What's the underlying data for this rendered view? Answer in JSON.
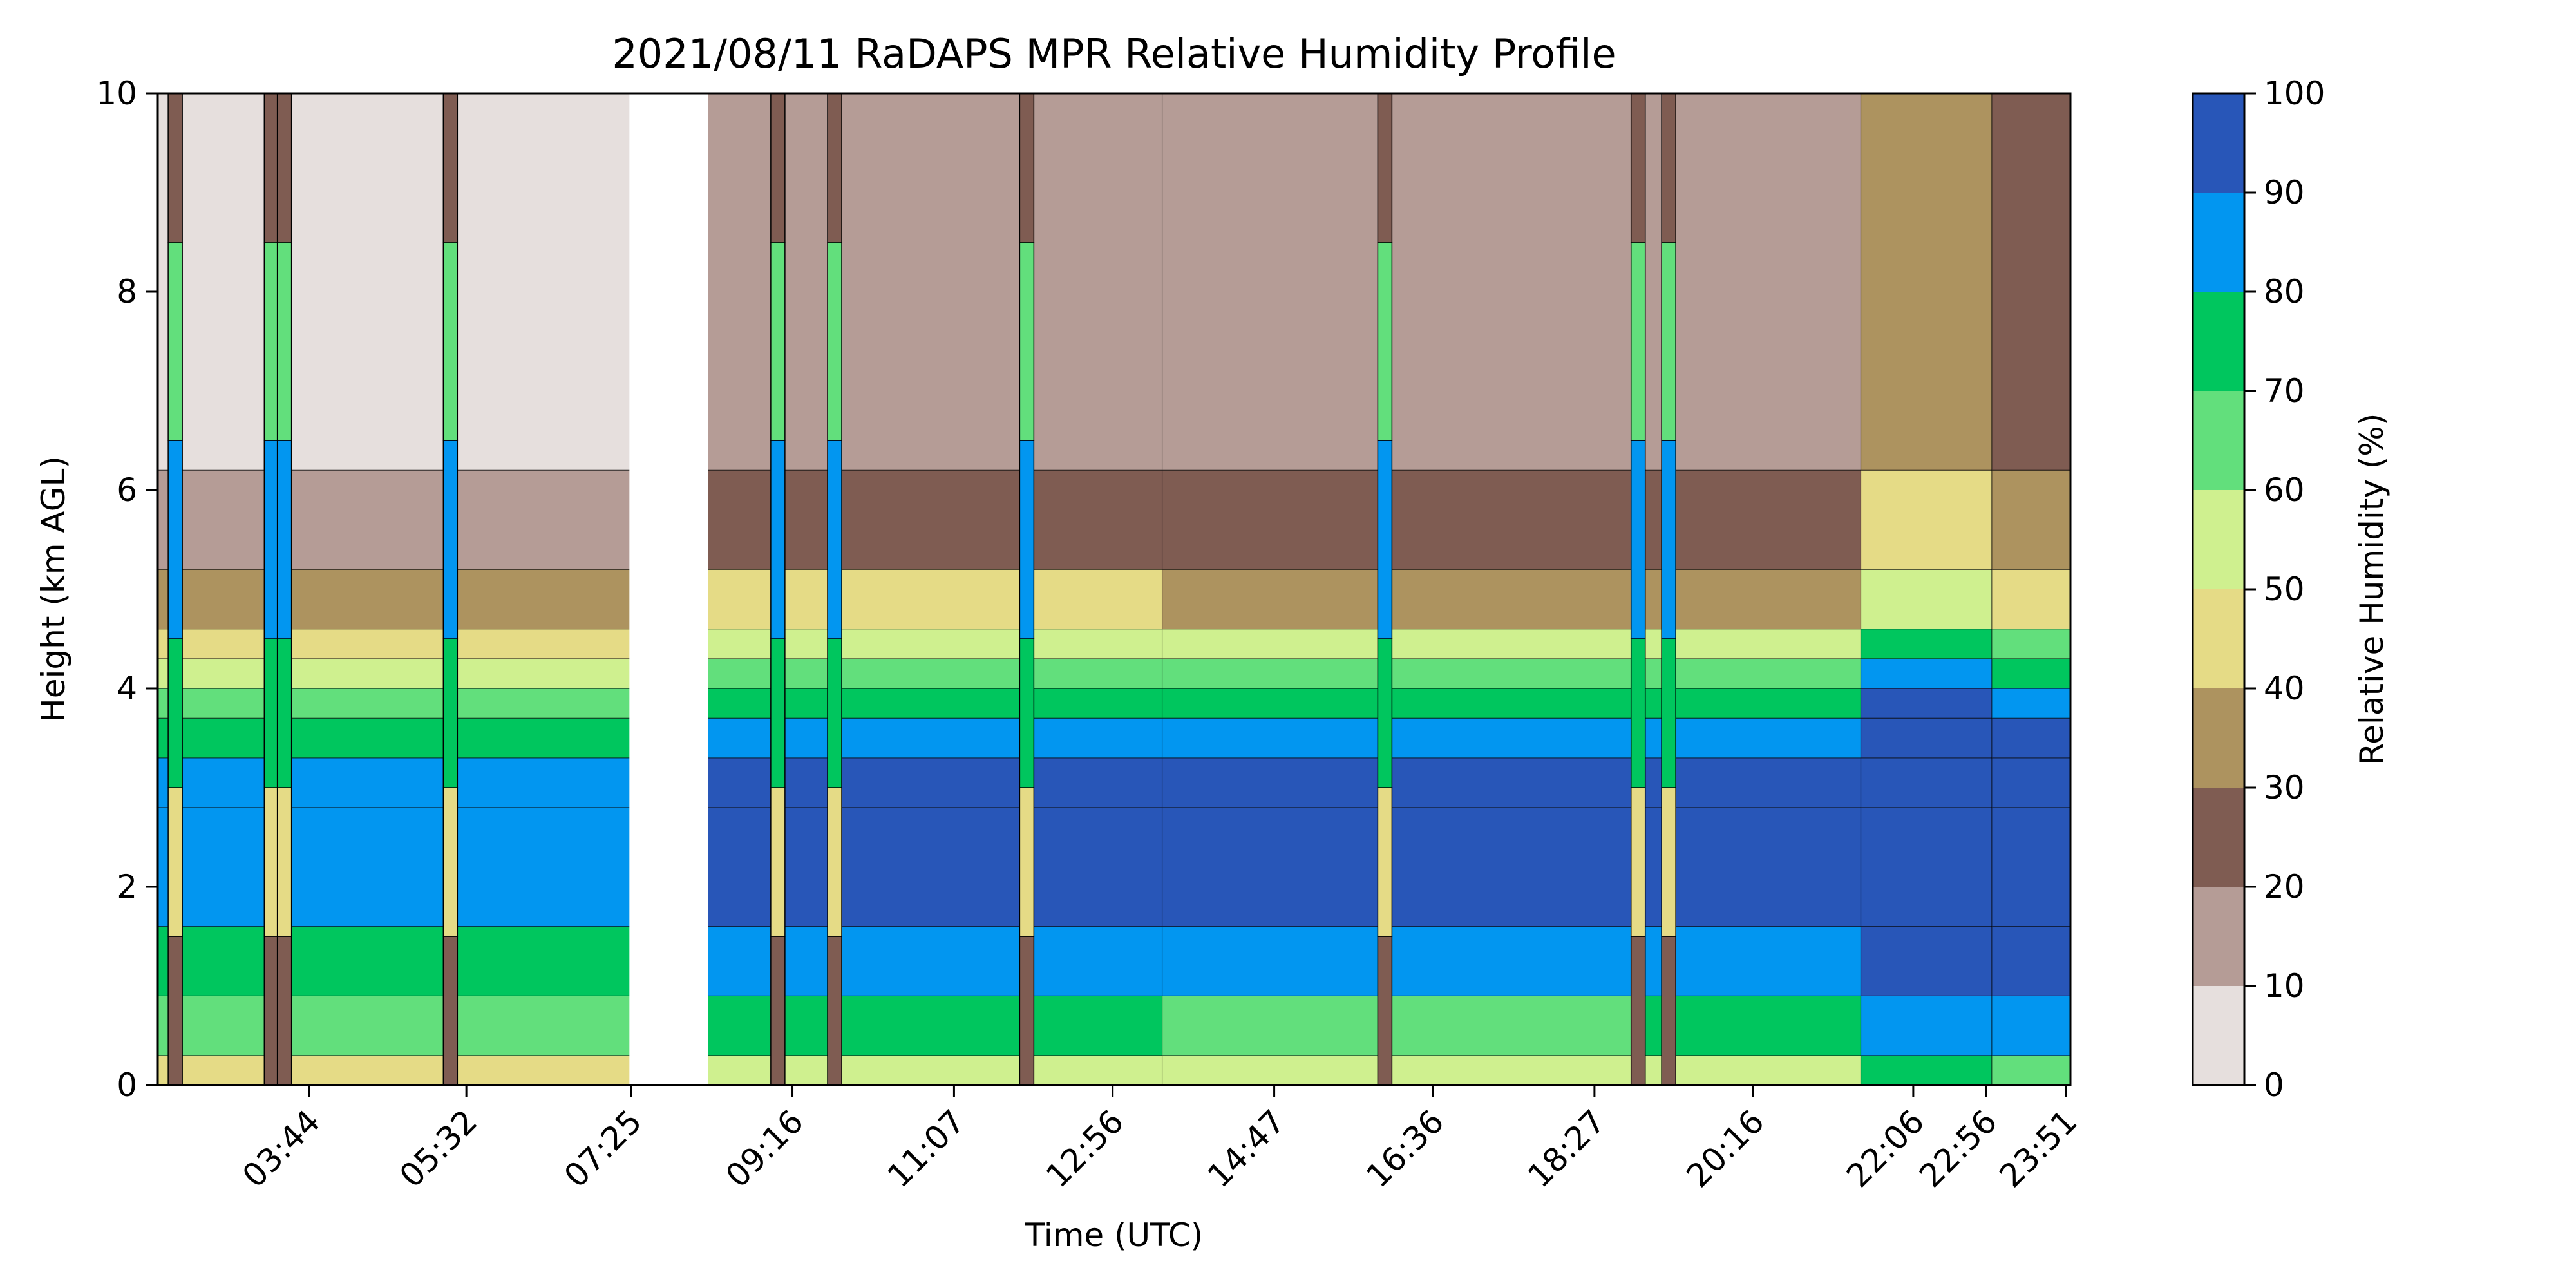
{
  "chart_data": {
    "type": "heatmap",
    "title": "2021/08/11 RaDAPS MPR Relative Humidity Profile",
    "xlabel": "Time (UTC)",
    "ylabel": "Height (km AGL)",
    "xticks": [
      "03:44",
      "05:32",
      "07:25",
      "09:16",
      "11:07",
      "12:56",
      "14:47",
      "16:36",
      "18:27",
      "20:16",
      "22:06",
      "22:56",
      "23:51"
    ],
    "xtick_hours": [
      3.733,
      5.533,
      7.417,
      9.267,
      11.117,
      12.933,
      14.783,
      16.6,
      18.45,
      20.267,
      22.1,
      22.933,
      23.85
    ],
    "xlim_hours": [
      2.0,
      23.9
    ],
    "ylim": [
      0,
      10
    ],
    "yticks": [
      0,
      2,
      4,
      6,
      8,
      10
    ],
    "colorbar": {
      "label": "Relative Humidity (%)",
      "levels": [
        0,
        10,
        20,
        30,
        40,
        50,
        60,
        70,
        80,
        90,
        100
      ],
      "colors": [
        "#e6dfdd",
        "#b59c96",
        "#7f5c52",
        "#ad935f",
        "#e5db86",
        "#cff08f",
        "#62df7c",
        "#00c65e",
        "#0296f0",
        "#2856b8"
      ]
    },
    "profile_levels_km": [
      0.0,
      0.3,
      0.9,
      1.6,
      2.8,
      3.3,
      3.7,
      4.0,
      4.3,
      4.6,
      5.2,
      6.2,
      10.0
    ],
    "profile_rh": [
      55,
      70,
      85,
      93,
      95,
      85,
      72,
      62,
      52,
      38,
      25,
      14,
      5
    ],
    "time_segments": [
      {
        "t0": 2.0,
        "t1": 8.3,
        "rh_offset": -8
      },
      {
        "t0": 8.3,
        "t1": 13.5,
        "rh_offset": 4
      },
      {
        "t0": 13.5,
        "t1": 19.0,
        "rh_offset": -2
      },
      {
        "t0": 19.0,
        "t1": 21.5,
        "rh_offset": 0
      },
      {
        "t0": 21.5,
        "t1": 23.0,
        "rh_offset": 18
      },
      {
        "t0": 23.0,
        "t1": 23.9,
        "rh_offset": 10
      }
    ],
    "spikes_hours": [
      2.2,
      3.3,
      3.45,
      5.35,
      9.1,
      9.75,
      11.95,
      16.05,
      18.95,
      19.3
    ],
    "data_gap_hours": [
      7.4,
      8.3
    ]
  }
}
